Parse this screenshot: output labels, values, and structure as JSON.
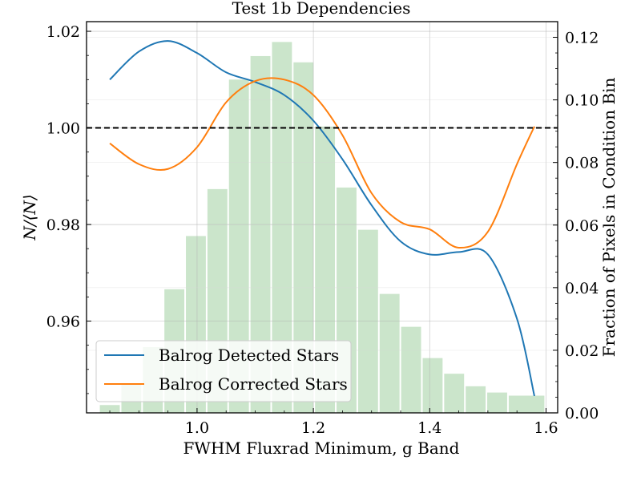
{
  "chart_data": {
    "type": "line",
    "title": "Test 1b Dependencies",
    "xlabel": "FWHM Fluxrad Minimum, g Band",
    "ylabel": "N/⟨N⟩",
    "y2label": "Fraction of Pixels in Condition Bin",
    "xlim": [
      0.81,
      1.62
    ],
    "ylim": [
      0.941,
      1.022
    ],
    "y2lim": [
      0.0,
      0.125
    ],
    "x_ticks": [
      "1.0",
      "1.2",
      "1.4",
      "1.6"
    ],
    "x_tick_values": [
      1.0,
      1.2,
      1.4,
      1.6
    ],
    "y_ticks": [
      "0.96",
      "0.98",
      "1.00",
      "1.02"
    ],
    "y_tick_values": [
      0.96,
      0.98,
      1.0,
      1.02
    ],
    "y2_ticks": [
      "0.00",
      "0.02",
      "0.04",
      "0.06",
      "0.08",
      "0.10",
      "0.12"
    ],
    "y2_tick_values": [
      0.0,
      0.02,
      0.04,
      0.06,
      0.08,
      0.1,
      0.12
    ],
    "grid": true,
    "reference_line": {
      "y": 1.0,
      "style": "dashed",
      "color": "#000000"
    },
    "legend": {
      "placement": "lower-left"
    },
    "series": [
      {
        "name": "Balrog Detected Stars",
        "color": "#1f77b4",
        "x": [
          0.85,
          0.9,
          0.95,
          1.0,
          1.05,
          1.1,
          1.15,
          1.2,
          1.25,
          1.3,
          1.35,
          1.4,
          1.45,
          1.5,
          1.55,
          1.58
        ],
        "y": [
          1.01,
          1.0158,
          1.018,
          1.0155,
          1.0115,
          1.0095,
          1.0068,
          1.0015,
          0.9935,
          0.984,
          0.9765,
          0.9738,
          0.9743,
          0.9738,
          0.9605,
          0.9445
        ]
      },
      {
        "name": "Balrog Corrected Stars",
        "color": "#ff7f0e",
        "x": [
          0.85,
          0.9,
          0.95,
          1.0,
          1.05,
          1.1,
          1.15,
          1.2,
          1.25,
          1.3,
          1.35,
          1.4,
          1.45,
          1.5,
          1.55,
          1.58
        ],
        "y": [
          0.9968,
          0.9925,
          0.9915,
          0.996,
          1.0053,
          1.0097,
          1.01,
          1.0068,
          0.9985,
          0.9865,
          0.9805,
          0.979,
          0.9752,
          0.9785,
          0.9925,
          1.0003
        ]
      }
    ],
    "histogram": {
      "color": "#cbe5cb",
      "bin_width": 0.037,
      "bin_centers": [
        0.85,
        0.887,
        0.924,
        0.961,
        0.998,
        1.035,
        1.072,
        1.109,
        1.146,
        1.183,
        1.22,
        1.257,
        1.294,
        1.331,
        1.368,
        1.405,
        1.442,
        1.479,
        1.516,
        1.553,
        1.58
      ],
      "values": [
        0.0025,
        0.009,
        0.021,
        0.0395,
        0.0565,
        0.0715,
        0.1065,
        0.114,
        0.1185,
        0.112,
        0.0915,
        0.072,
        0.0585,
        0.038,
        0.0275,
        0.0175,
        0.0125,
        0.0085,
        0.0065,
        0.0055,
        0.0055
      ]
    }
  }
}
